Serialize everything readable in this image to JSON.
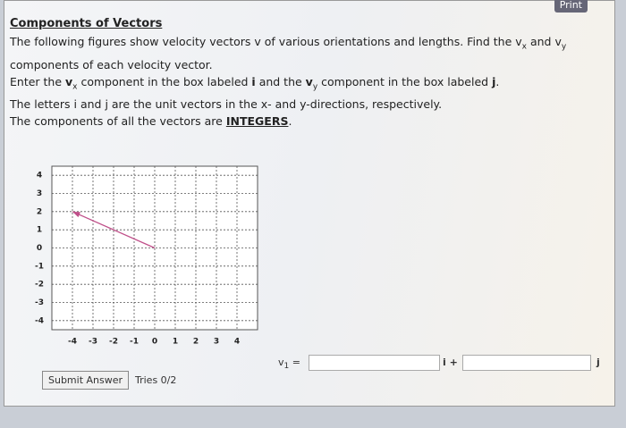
{
  "header": {
    "title": "Components of Vectors",
    "print": "Print"
  },
  "instructions": {
    "line1": [
      "The following figures show velocity vectors v of various orientations and lengths. Find the v",
      "x",
      " and v",
      "y",
      " components of each velocity vector."
    ],
    "line2": [
      "Enter the ",
      "v",
      "x",
      " component in the box labeled ",
      "i",
      " and the ",
      "v",
      "y",
      " component in the box labeled ",
      "j",
      "."
    ],
    "line3": "The letters i and j are the unit vectors in the x- and y-directions, respectively.",
    "line4": [
      "The components of all the vectors are ",
      "INTEGERS",
      "."
    ]
  },
  "graph": {
    "xlim": [
      -5,
      5
    ],
    "ylim": [
      -4.5,
      4.5
    ],
    "xticks": [
      -4,
      -3,
      -2,
      -1,
      0,
      1,
      2,
      3,
      4
    ],
    "yticks": [
      4,
      3,
      2,
      1,
      0,
      -1,
      -2,
      -3,
      -4
    ],
    "vector": {
      "tail": [
        0,
        0
      ],
      "head": [
        -4,
        2
      ]
    }
  },
  "form": {
    "variable": [
      "v",
      "1",
      " ="
    ],
    "i_label": "i +",
    "j_label": "j",
    "submit": "Submit Answer",
    "tries": "Tries 0/2"
  }
}
